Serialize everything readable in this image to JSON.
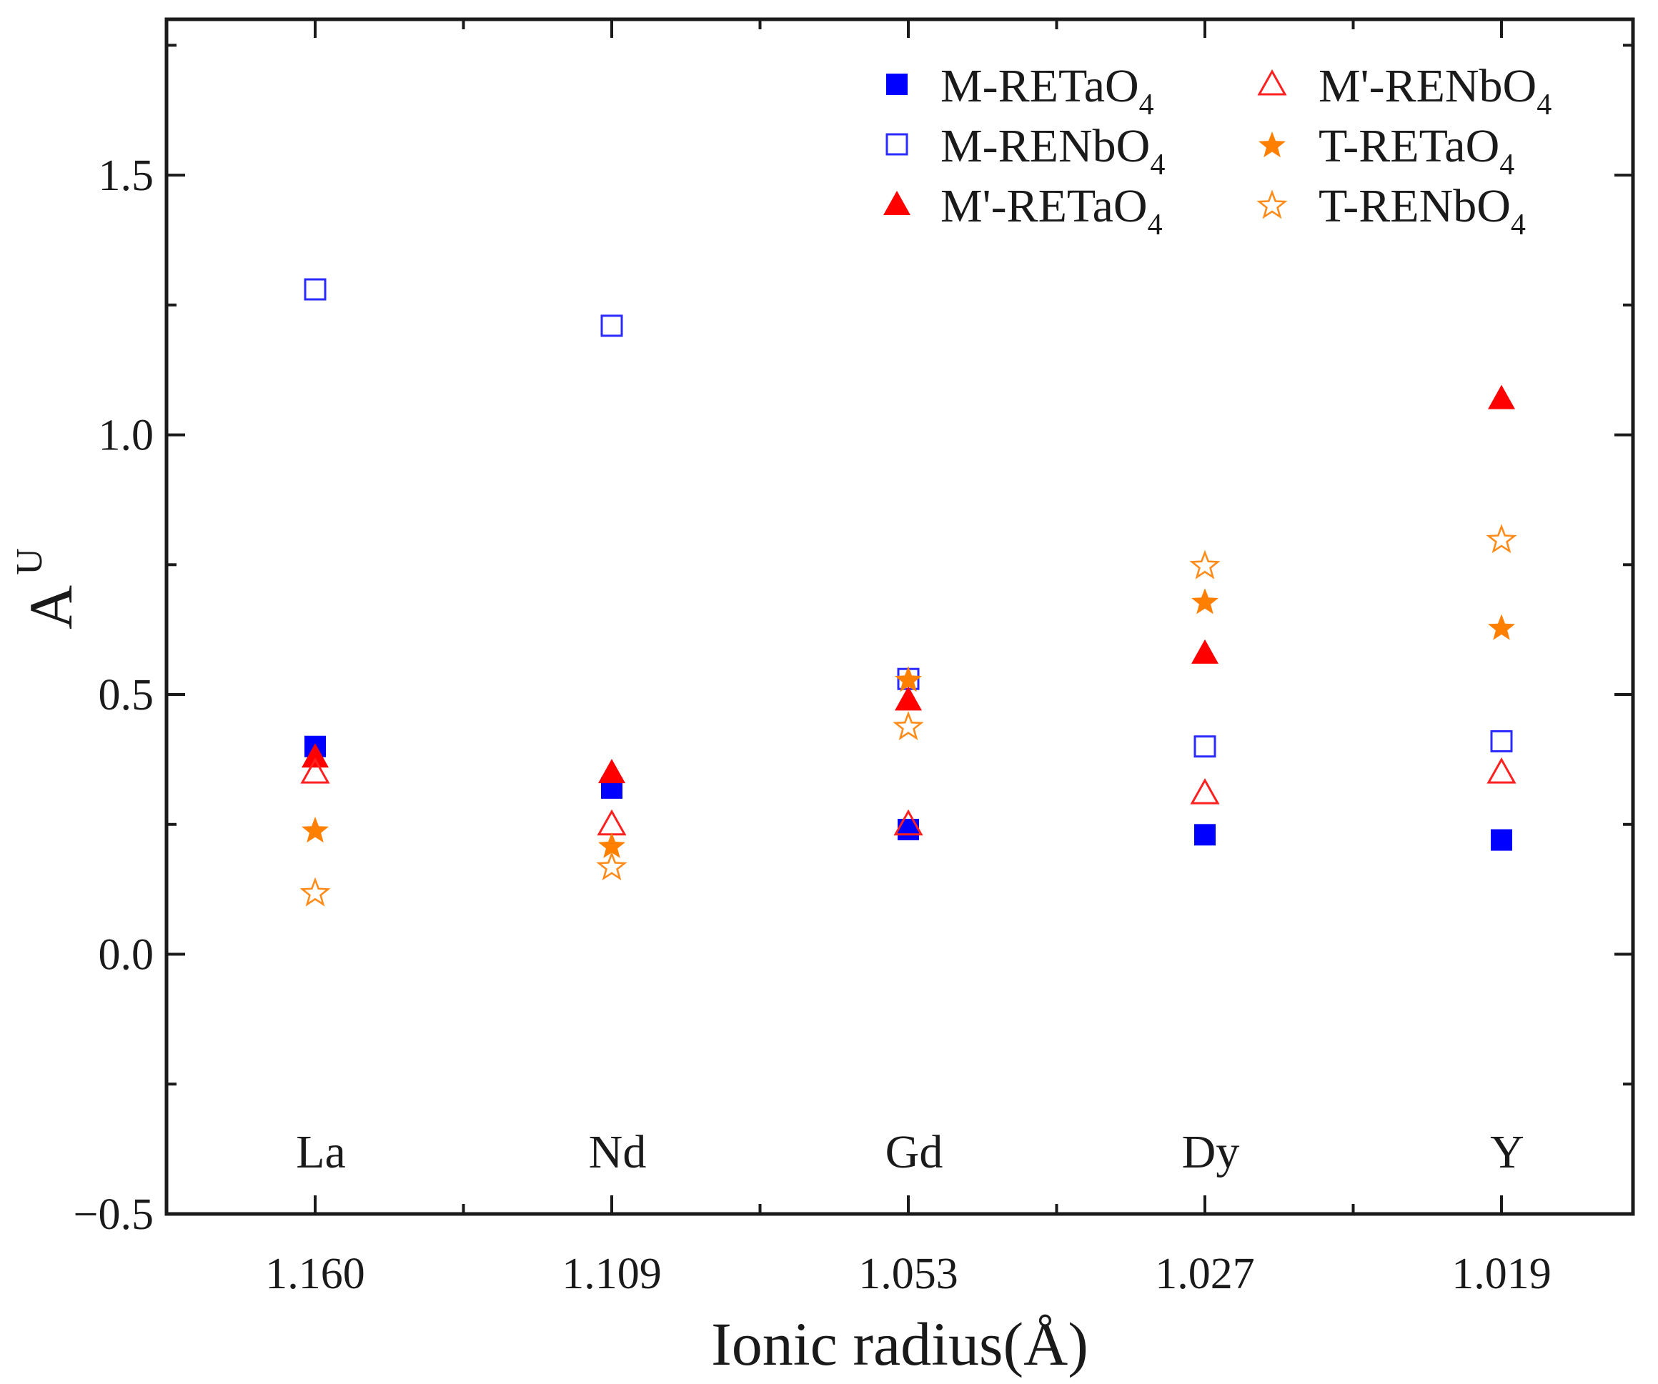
{
  "chart_data": {
    "type": "scatter",
    "xlabel": "Ionic radius(Å)",
    "ylabel": "A",
    "ylabel_superscript": "U",
    "ylim": [
      -0.5,
      1.8
    ],
    "yticks": [
      -0.5,
      0.0,
      0.5,
      1.0,
      1.5
    ],
    "ytick_labels": [
      "−0.5",
      "0.0",
      "0.5",
      "1.0",
      "1.5"
    ],
    "categories": [
      "1.160",
      "1.109",
      "1.053",
      "1.027",
      "1.019"
    ],
    "elements": [
      "La",
      "Nd",
      "Gd",
      "Dy",
      "Y"
    ],
    "legend_position": "top-right",
    "series": [
      {
        "name": "M-RETaO",
        "sub": "4",
        "marker": "square-filled",
        "color": "#0000ff",
        "values": [
          0.4,
          0.32,
          0.24,
          0.23,
          0.22
        ]
      },
      {
        "name": "M-RENbO",
        "sub": "4",
        "marker": "square-open",
        "color": "#2b2bff",
        "values": [
          1.28,
          1.21,
          0.53,
          0.4,
          0.41
        ]
      },
      {
        "name": "M'-RETaO",
        "sub": "4",
        "marker": "triangle-filled",
        "color": "#ff0000",
        "values": [
          0.38,
          0.35,
          0.49,
          0.58,
          1.07
        ]
      },
      {
        "name": "M'-RENbO",
        "sub": "4",
        "marker": "triangle-open",
        "color": "#ff2020",
        "values": [
          0.35,
          0.25,
          0.25,
          0.31,
          0.35
        ]
      },
      {
        "name": "T-RETaO",
        "sub": "4",
        "marker": "star-filled",
        "color": "#ff8000",
        "values": [
          0.24,
          0.21,
          0.53,
          0.68,
          0.63
        ]
      },
      {
        "name": "T-RENbO",
        "sub": "4",
        "marker": "star-open",
        "color": "#ff8c1a",
        "values": [
          0.12,
          0.17,
          0.44,
          0.75,
          0.8
        ]
      }
    ]
  }
}
